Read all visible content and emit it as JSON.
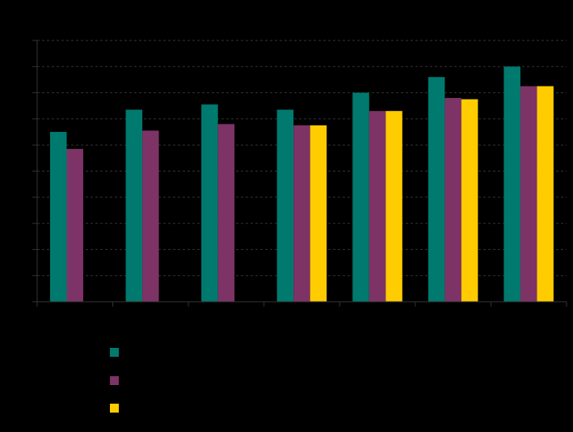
{
  "chart_data": {
    "type": "bar",
    "title": "",
    "xlabel": "",
    "ylabel": "",
    "categories": [
      "",
      "",
      "",
      "",
      "",
      "",
      ""
    ],
    "ylim": [
      0,
      10
    ],
    "y_ticks": [
      0,
      1,
      2,
      3,
      4,
      5,
      6,
      7,
      8,
      9,
      10
    ],
    "grid": true,
    "grid_style": "dashed",
    "legend_position": "bottom-left",
    "series": [
      {
        "name": "",
        "color": "#007A6E",
        "values": [
          6.5,
          7.35,
          7.55,
          7.35,
          8.0,
          8.6,
          9.0
        ]
      },
      {
        "name": "",
        "color": "#7E3366",
        "values": [
          5.85,
          6.55,
          6.8,
          6.75,
          7.3,
          7.8,
          8.25
        ]
      },
      {
        "name": "",
        "color": "#FFCC00",
        "values": [
          null,
          null,
          null,
          6.75,
          7.3,
          7.75,
          8.25
        ]
      }
    ]
  }
}
